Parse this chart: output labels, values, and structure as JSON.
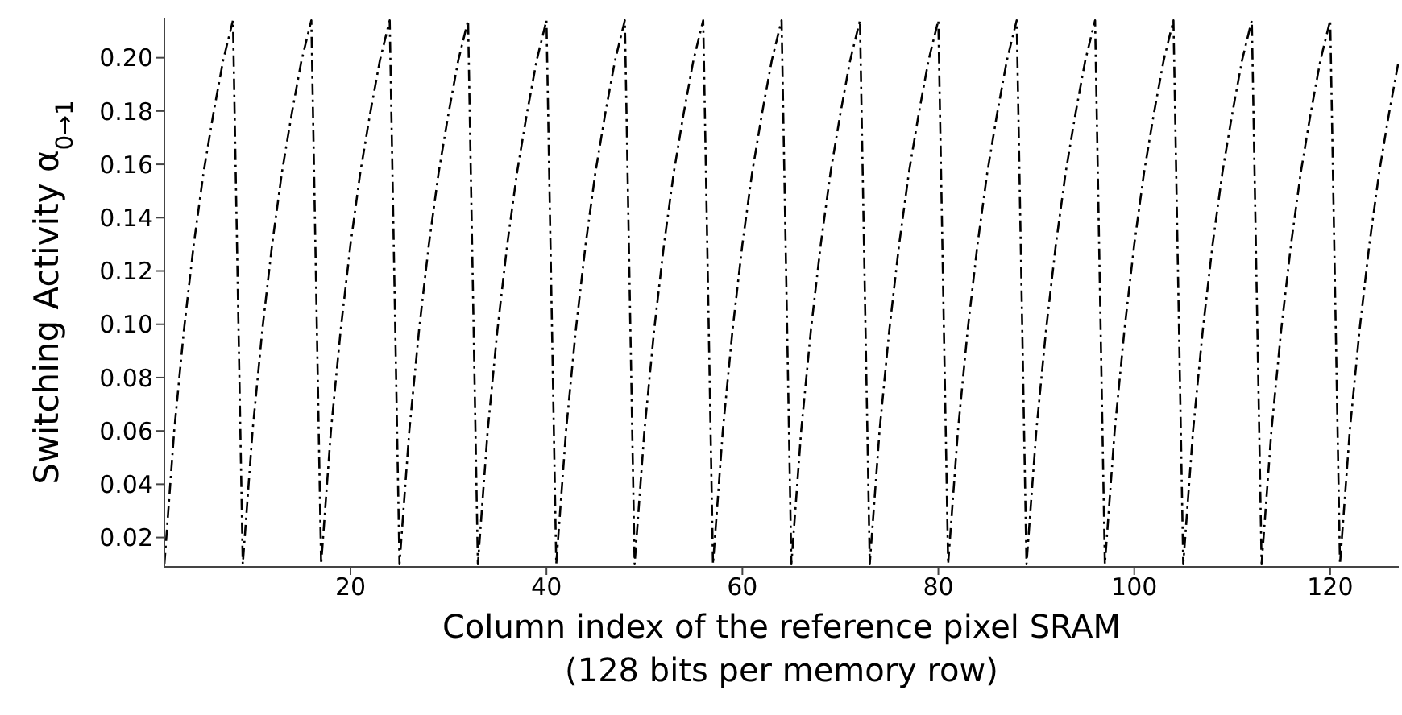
{
  "chart_data": {
    "type": "line",
    "xlabel": "Column index of the reference pixel SRAM\n(128 bits per memory row)",
    "ylabel": "Switching Activity α$_{0→1}$",
    "x": [
      1,
      2,
      3,
      4,
      5,
      6,
      7,
      8,
      9,
      10,
      11,
      12,
      13,
      14,
      15,
      16,
      17,
      18,
      19,
      20,
      21,
      22,
      23,
      24,
      25,
      26,
      27,
      28,
      29,
      30,
      31,
      32,
      33,
      34,
      35,
      36,
      37,
      38,
      39,
      40,
      41,
      42,
      43,
      44,
      45,
      46,
      47,
      48,
      49,
      50,
      51,
      52,
      53,
      54,
      55,
      56,
      57,
      58,
      59,
      60,
      61,
      62,
      63,
      64,
      65,
      66,
      67,
      68,
      69,
      70,
      71,
      72,
      73,
      74,
      75,
      76,
      77,
      78,
      79,
      80,
      81,
      82,
      83,
      84,
      85,
      86,
      87,
      88,
      89,
      90,
      91,
      92,
      93,
      94,
      95,
      96,
      97,
      98,
      99,
      100,
      101,
      102,
      103,
      104,
      105,
      106,
      107,
      108,
      109,
      110,
      111,
      112,
      113,
      114,
      115,
      116,
      117,
      118,
      119,
      120,
      121,
      122,
      123,
      124,
      125,
      126,
      127
    ],
    "series": [
      {
        "color": "#000000",
        "values": [
          0.01,
          0.06,
          0.098,
          0.13,
          0.157,
          0.179,
          0.199,
          0.214,
          0.01,
          0.06,
          0.098,
          0.13,
          0.157,
          0.179,
          0.199,
          0.214,
          0.01,
          0.06,
          0.098,
          0.13,
          0.157,
          0.179,
          0.199,
          0.214,
          0.01,
          0.06,
          0.098,
          0.13,
          0.157,
          0.179,
          0.199,
          0.214,
          0.01,
          0.06,
          0.098,
          0.13,
          0.157,
          0.179,
          0.199,
          0.214,
          0.01,
          0.06,
          0.098,
          0.13,
          0.157,
          0.179,
          0.199,
          0.214,
          0.01,
          0.06,
          0.098,
          0.13,
          0.157,
          0.179,
          0.199,
          0.214,
          0.01,
          0.06,
          0.098,
          0.13,
          0.157,
          0.179,
          0.199,
          0.214,
          0.01,
          0.06,
          0.098,
          0.13,
          0.157,
          0.179,
          0.199,
          0.214,
          0.01,
          0.06,
          0.098,
          0.13,
          0.157,
          0.179,
          0.199,
          0.214,
          0.01,
          0.06,
          0.098,
          0.13,
          0.157,
          0.179,
          0.199,
          0.214,
          0.01,
          0.06,
          0.098,
          0.13,
          0.157,
          0.179,
          0.199,
          0.214,
          0.01,
          0.06,
          0.098,
          0.13,
          0.157,
          0.179,
          0.199,
          0.214,
          0.01,
          0.06,
          0.098,
          0.13,
          0.157,
          0.179,
          0.199,
          0.214,
          0.01,
          0.06,
          0.098,
          0.13,
          0.157,
          0.179,
          0.199,
          0.214,
          0.01,
          0.06,
          0.098,
          0.13,
          0.157,
          0.179,
          0.199
        ]
      }
    ],
    "xlim": [
      1,
      127
    ],
    "xticks": [
      20,
      40,
      60,
      80,
      100,
      120
    ],
    "ylim": [
      0.009,
      0.215
    ],
    "yticks": [
      {
        "value": 0.02,
        "label": "0.02"
      },
      {
        "value": 0.04,
        "label": "0.04"
      },
      {
        "value": 0.06,
        "label": "0.06"
      },
      {
        "value": 0.08,
        "label": "0.08"
      },
      {
        "value": 0.1,
        "label": "0.10"
      },
      {
        "value": 0.12,
        "label": "0.12"
      },
      {
        "value": 0.14,
        "label": "0.14"
      },
      {
        "value": 0.16,
        "label": "0.16"
      },
      {
        "value": 0.18,
        "label": "0.18"
      },
      {
        "value": 0.2,
        "label": "0.20"
      }
    ],
    "line_style": "dashed",
    "grid": false,
    "legend": false
  }
}
